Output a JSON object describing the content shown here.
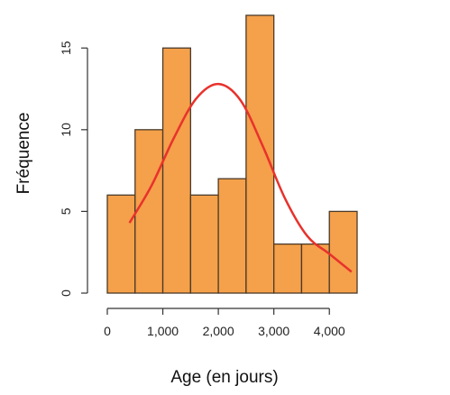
{
  "chart_data": {
    "type": "bar",
    "xlabel": "Age (en jours)",
    "ylabel": "Fréquence",
    "bins": [
      {
        "start": 0,
        "end": 500,
        "value": 6
      },
      {
        "start": 500,
        "end": 1000,
        "value": 10
      },
      {
        "start": 1000,
        "end": 1500,
        "value": 15
      },
      {
        "start": 1500,
        "end": 2000,
        "value": 6
      },
      {
        "start": 2000,
        "end": 2500,
        "value": 7
      },
      {
        "start": 2500,
        "end": 3000,
        "value": 17
      },
      {
        "start": 3000,
        "end": 3500,
        "value": 3
      },
      {
        "start": 3500,
        "end": 4000,
        "value": 3
      },
      {
        "start": 4000,
        "end": 4500,
        "value": 5
      }
    ],
    "x_ticks": [
      0,
      1000,
      2000,
      3000,
      4000
    ],
    "x_tick_labels": [
      "0",
      "1,000",
      "2,000",
      "3,000",
      "4,000"
    ],
    "y_ticks": [
      0,
      5,
      10,
      15
    ],
    "y_tick_labels": [
      "0",
      "5",
      "10",
      "15"
    ],
    "xlim": [
      0,
      4500
    ],
    "ylim": [
      0,
      17
    ],
    "grid": false,
    "density_curve": {
      "x": [
        400,
        800,
        1200,
        1600,
        2000,
        2400,
        2800,
        3200,
        3600,
        4000,
        4400
      ],
      "y": [
        4.3,
        6.6,
        9.5,
        11.9,
        12.8,
        11.8,
        9.0,
        5.8,
        3.5,
        2.4,
        1.3
      ]
    },
    "colors": {
      "bar_fill": "#f5a04a",
      "bar_stroke": "#4a3a2a",
      "curve": "#e8322c",
      "axis": "#333333"
    }
  }
}
